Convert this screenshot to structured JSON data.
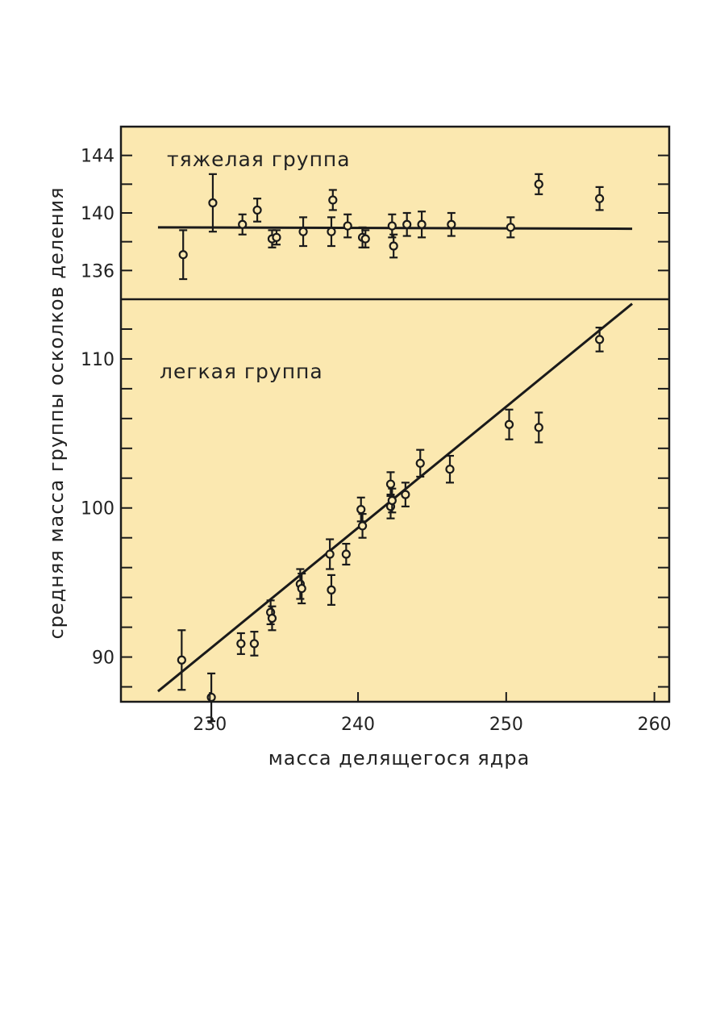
{
  "chart_data": {
    "type": "scatter",
    "xlabel": "масса делящегося ядра",
    "ylabel": "средняя масса группы осколков деления",
    "xlim": [
      224,
      261
    ],
    "x_ticks": [
      230,
      240,
      250,
      260
    ],
    "x_tick_labels": [
      "230",
      "240",
      "250",
      "260"
    ],
    "background_color": "#fbe8b0",
    "marker_color": "#1a1a1a",
    "panels": [
      {
        "id": "heavy",
        "label": "тяжелая группа",
        "ylim": [
          134,
          146
        ],
        "y_ticks": [
          136,
          138,
          140,
          142,
          144
        ],
        "y_tick_labels": [
          "136",
          "",
          "140",
          "",
          "144"
        ],
        "fit_line": {
          "x": [
            226.5,
            258.5
          ],
          "y": [
            139.0,
            138.9
          ]
        },
        "points": [
          {
            "x": 228.2,
            "y": 137.1,
            "err": 1.7
          },
          {
            "x": 230.2,
            "y": 140.7,
            "err": 2.0
          },
          {
            "x": 232.2,
            "y": 139.2,
            "err": 0.7
          },
          {
            "x": 233.2,
            "y": 140.2,
            "err": 0.8
          },
          {
            "x": 234.2,
            "y": 138.2,
            "err": 0.6
          },
          {
            "x": 234.5,
            "y": 138.3,
            "err": 0.5
          },
          {
            "x": 236.3,
            "y": 138.7,
            "err": 1.0
          },
          {
            "x": 238.2,
            "y": 138.7,
            "err": 1.0
          },
          {
            "x": 238.3,
            "y": 140.9,
            "err": 0.7
          },
          {
            "x": 239.3,
            "y": 139.1,
            "err": 0.8
          },
          {
            "x": 240.3,
            "y": 138.3,
            "err": 0.7
          },
          {
            "x": 240.5,
            "y": 138.2,
            "err": 0.6
          },
          {
            "x": 242.3,
            "y": 139.1,
            "err": 0.8
          },
          {
            "x": 242.4,
            "y": 137.7,
            "err": 0.8
          },
          {
            "x": 243.3,
            "y": 139.2,
            "err": 0.8
          },
          {
            "x": 244.3,
            "y": 139.2,
            "err": 0.9
          },
          {
            "x": 246.3,
            "y": 139.2,
            "err": 0.8
          },
          {
            "x": 250.3,
            "y": 139.0,
            "err": 0.7
          },
          {
            "x": 252.2,
            "y": 142.0,
            "err": 0.7
          },
          {
            "x": 256.3,
            "y": 141.0,
            "err": 0.8
          }
        ]
      },
      {
        "id": "light",
        "label": "легкая группа",
        "ylim": [
          87,
          114
        ],
        "y_ticks": [
          88,
          90,
          92,
          94,
          96,
          98,
          100,
          102,
          104,
          106,
          108,
          110,
          112
        ],
        "y_tick_labels": [
          "",
          "90",
          "",
          "",
          "",
          "",
          "100",
          "",
          "",
          "",
          "",
          "110",
          ""
        ],
        "fit_line": {
          "x": [
            226.5,
            258.5
          ],
          "y": [
            87.7,
            113.7
          ]
        },
        "points": [
          {
            "x": 228.1,
            "y": 89.8,
            "err": 2.0
          },
          {
            "x": 230.1,
            "y": 87.3,
            "err": 1.6
          },
          {
            "x": 232.1,
            "y": 90.9,
            "err": 0.7
          },
          {
            "x": 233.0,
            "y": 90.9,
            "err": 0.8
          },
          {
            "x": 234.1,
            "y": 93.0,
            "err": 0.8
          },
          {
            "x": 234.2,
            "y": 92.6,
            "err": 0.8
          },
          {
            "x": 236.1,
            "y": 94.9,
            "err": 1.0
          },
          {
            "x": 236.2,
            "y": 94.6,
            "err": 1.0
          },
          {
            "x": 238.1,
            "y": 96.9,
            "err": 1.0
          },
          {
            "x": 238.2,
            "y": 94.5,
            "err": 1.0
          },
          {
            "x": 239.2,
            "y": 96.9,
            "err": 0.7
          },
          {
            "x": 240.2,
            "y": 99.9,
            "err": 0.8
          },
          {
            "x": 240.3,
            "y": 98.8,
            "err": 0.8
          },
          {
            "x": 242.2,
            "y": 101.6,
            "err": 0.8
          },
          {
            "x": 242.2,
            "y": 100.1,
            "err": 0.8
          },
          {
            "x": 242.3,
            "y": 100.5,
            "err": 0.8
          },
          {
            "x": 243.2,
            "y": 100.9,
            "err": 0.8
          },
          {
            "x": 244.2,
            "y": 103.0,
            "err": 0.9
          },
          {
            "x": 246.2,
            "y": 102.6,
            "err": 0.9
          },
          {
            "x": 250.2,
            "y": 105.6,
            "err": 1.0
          },
          {
            "x": 252.2,
            "y": 105.4,
            "err": 1.0
          },
          {
            "x": 256.3,
            "y": 111.3,
            "err": 0.8
          }
        ]
      }
    ]
  }
}
